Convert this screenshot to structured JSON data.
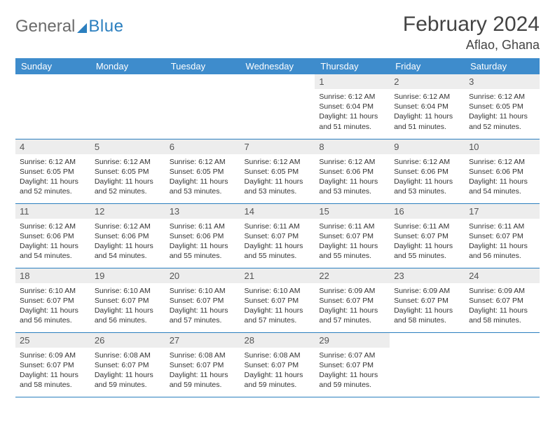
{
  "logo": {
    "word1": "General",
    "word2": "Blue"
  },
  "title": "February 2024",
  "location": "Aflao, Ghana",
  "colors": {
    "header_bg": "#3e8ccc",
    "header_text": "#ffffff",
    "daynum_bg": "#ededed",
    "rule": "#2b7fbf",
    "logo_gray": "#6b6b6b",
    "logo_blue": "#2b7fbf"
  },
  "layout": {
    "cols": 7,
    "rows": 5,
    "first_weekday_col": 4
  },
  "weekdays": [
    "Sunday",
    "Monday",
    "Tuesday",
    "Wednesday",
    "Thursday",
    "Friday",
    "Saturday"
  ],
  "days": [
    {
      "n": 1,
      "sunrise": "6:12 AM",
      "sunset": "6:04 PM",
      "daylight": "11 hours and 51 minutes."
    },
    {
      "n": 2,
      "sunrise": "6:12 AM",
      "sunset": "6:04 PM",
      "daylight": "11 hours and 51 minutes."
    },
    {
      "n": 3,
      "sunrise": "6:12 AM",
      "sunset": "6:05 PM",
      "daylight": "11 hours and 52 minutes."
    },
    {
      "n": 4,
      "sunrise": "6:12 AM",
      "sunset": "6:05 PM",
      "daylight": "11 hours and 52 minutes."
    },
    {
      "n": 5,
      "sunrise": "6:12 AM",
      "sunset": "6:05 PM",
      "daylight": "11 hours and 52 minutes."
    },
    {
      "n": 6,
      "sunrise": "6:12 AM",
      "sunset": "6:05 PM",
      "daylight": "11 hours and 53 minutes."
    },
    {
      "n": 7,
      "sunrise": "6:12 AM",
      "sunset": "6:05 PM",
      "daylight": "11 hours and 53 minutes."
    },
    {
      "n": 8,
      "sunrise": "6:12 AM",
      "sunset": "6:06 PM",
      "daylight": "11 hours and 53 minutes."
    },
    {
      "n": 9,
      "sunrise": "6:12 AM",
      "sunset": "6:06 PM",
      "daylight": "11 hours and 53 minutes."
    },
    {
      "n": 10,
      "sunrise": "6:12 AM",
      "sunset": "6:06 PM",
      "daylight": "11 hours and 54 minutes."
    },
    {
      "n": 11,
      "sunrise": "6:12 AM",
      "sunset": "6:06 PM",
      "daylight": "11 hours and 54 minutes."
    },
    {
      "n": 12,
      "sunrise": "6:12 AM",
      "sunset": "6:06 PM",
      "daylight": "11 hours and 54 minutes."
    },
    {
      "n": 13,
      "sunrise": "6:11 AM",
      "sunset": "6:06 PM",
      "daylight": "11 hours and 55 minutes."
    },
    {
      "n": 14,
      "sunrise": "6:11 AM",
      "sunset": "6:07 PM",
      "daylight": "11 hours and 55 minutes."
    },
    {
      "n": 15,
      "sunrise": "6:11 AM",
      "sunset": "6:07 PM",
      "daylight": "11 hours and 55 minutes."
    },
    {
      "n": 16,
      "sunrise": "6:11 AM",
      "sunset": "6:07 PM",
      "daylight": "11 hours and 55 minutes."
    },
    {
      "n": 17,
      "sunrise": "6:11 AM",
      "sunset": "6:07 PM",
      "daylight": "11 hours and 56 minutes."
    },
    {
      "n": 18,
      "sunrise": "6:10 AM",
      "sunset": "6:07 PM",
      "daylight": "11 hours and 56 minutes."
    },
    {
      "n": 19,
      "sunrise": "6:10 AM",
      "sunset": "6:07 PM",
      "daylight": "11 hours and 56 minutes."
    },
    {
      "n": 20,
      "sunrise": "6:10 AM",
      "sunset": "6:07 PM",
      "daylight": "11 hours and 57 minutes."
    },
    {
      "n": 21,
      "sunrise": "6:10 AM",
      "sunset": "6:07 PM",
      "daylight": "11 hours and 57 minutes."
    },
    {
      "n": 22,
      "sunrise": "6:09 AM",
      "sunset": "6:07 PM",
      "daylight": "11 hours and 57 minutes."
    },
    {
      "n": 23,
      "sunrise": "6:09 AM",
      "sunset": "6:07 PM",
      "daylight": "11 hours and 58 minutes."
    },
    {
      "n": 24,
      "sunrise": "6:09 AM",
      "sunset": "6:07 PM",
      "daylight": "11 hours and 58 minutes."
    },
    {
      "n": 25,
      "sunrise": "6:09 AM",
      "sunset": "6:07 PM",
      "daylight": "11 hours and 58 minutes."
    },
    {
      "n": 26,
      "sunrise": "6:08 AM",
      "sunset": "6:07 PM",
      "daylight": "11 hours and 59 minutes."
    },
    {
      "n": 27,
      "sunrise": "6:08 AM",
      "sunset": "6:07 PM",
      "daylight": "11 hours and 59 minutes."
    },
    {
      "n": 28,
      "sunrise": "6:08 AM",
      "sunset": "6:07 PM",
      "daylight": "11 hours and 59 minutes."
    },
    {
      "n": 29,
      "sunrise": "6:07 AM",
      "sunset": "6:07 PM",
      "daylight": "11 hours and 59 minutes."
    }
  ],
  "labels": {
    "sunrise": "Sunrise:",
    "sunset": "Sunset:",
    "daylight": "Daylight:"
  }
}
